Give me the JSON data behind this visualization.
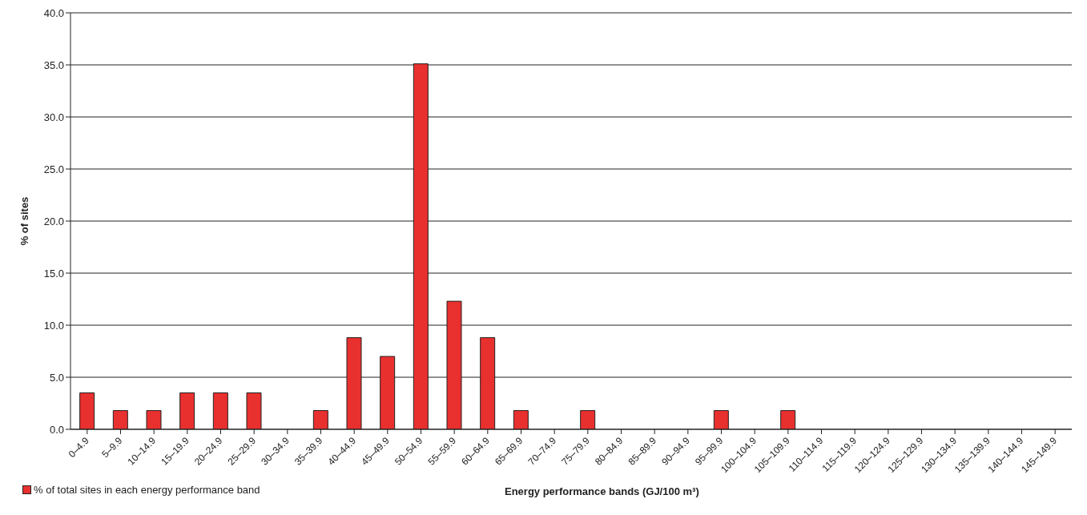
{
  "chart_data": {
    "type": "bar",
    "categories": [
      "0–4.9",
      "5–9.9",
      "10–14.9",
      "15–19.9",
      "20–24.9",
      "25–29.9",
      "30–34.9",
      "35–39.9",
      "40–44.9",
      "45–49.9",
      "50–54.9",
      "55–59.9",
      "60–64.9",
      "65–69.9",
      "70–74.9",
      "75–79.9",
      "80–84.9",
      "85–89.9",
      "90–94.9",
      "95–99.9",
      "100–104.9",
      "105–109.9",
      "110–114.9",
      "115–119.9",
      "120–124.9",
      "125–129.9",
      "130–134.9",
      "135–139.9",
      "140–144.9",
      "145–149.9"
    ],
    "series": [
      {
        "name": "% of total sites in each energy performance band",
        "color": "#e8302f",
        "values": [
          3.5,
          1.8,
          1.8,
          3.5,
          3.5,
          3.5,
          0,
          1.8,
          8.8,
          7.0,
          35.1,
          12.3,
          8.8,
          1.8,
          0,
          1.8,
          0,
          0,
          0,
          1.8,
          0,
          1.8,
          0,
          0,
          0,
          0,
          0,
          0,
          0,
          0
        ]
      }
    ],
    "xlabel": "Energy performance bands (GJ/100 m³)",
    "ylabel": "% of sites",
    "ylim": [
      0,
      40
    ],
    "yticks": [
      {
        "value": 0,
        "label": "0.0"
      },
      {
        "value": 5,
        "label": "5.0"
      },
      {
        "value": 10,
        "label": "10.0"
      },
      {
        "value": 15,
        "label": "15.0"
      },
      {
        "value": 20,
        "label": "20.0"
      },
      {
        "value": 25,
        "label": "25.0"
      },
      {
        "value": 30,
        "label": "30.0"
      },
      {
        "value": 35,
        "label": "35.0"
      },
      {
        "value": 40,
        "label": "40.0"
      }
    ],
    "grid": "y",
    "legend": "bottom left"
  }
}
